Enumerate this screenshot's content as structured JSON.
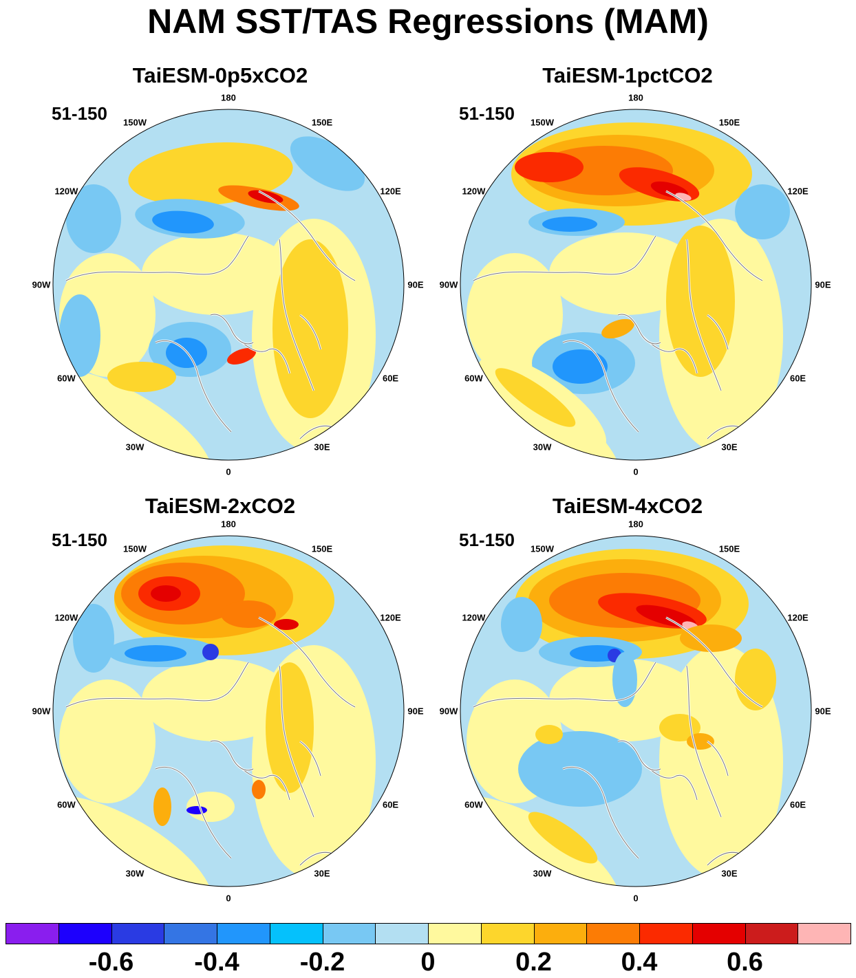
{
  "title": "NAM SST/TAS Regressions (MAM)",
  "panels": [
    {
      "title": "TaiESM-0p5xCO2",
      "period": "51-150"
    },
    {
      "title": "TaiESM-1pctCO2",
      "period": "51-150"
    },
    {
      "title": "TaiESM-2xCO2",
      "period": "51-150"
    },
    {
      "title": "TaiESM-4xCO2",
      "period": "51-150"
    }
  ],
  "longitude_labels": [
    "180",
    "150E",
    "120E",
    "90E",
    "60E",
    "30E",
    "0",
    "30W",
    "60W",
    "90W",
    "120W",
    "150W"
  ],
  "colorbar": {
    "colors": [
      "#8a1eee",
      "#1d00fd",
      "#2a3be3",
      "#3475e4",
      "#2196fc",
      "#05c1fc",
      "#78c8f3",
      "#b3dff2",
      "#fff99e",
      "#fdd62c",
      "#fcae0d",
      "#fc7c05",
      "#fb2a00",
      "#e40000",
      "#cc1c1c",
      "#feb5b5"
    ],
    "tick_labels": [
      "-0.6",
      "-0.4",
      "-0.2",
      "0",
      "0.2",
      "0.4",
      "0.6"
    ]
  }
}
